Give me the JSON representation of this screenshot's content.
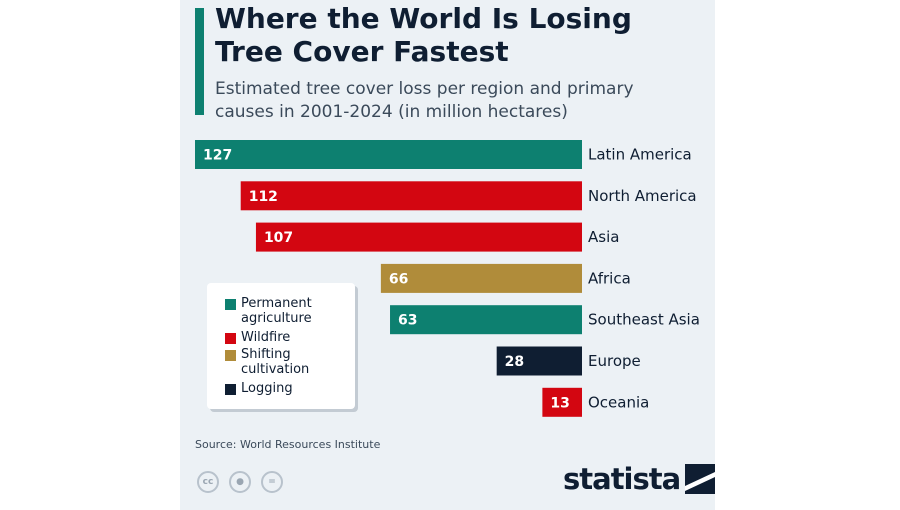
{
  "title": "Where the World Is Losing Tree Cover Fastest",
  "subtitle": "Estimated tree cover loss per region and primary causes in 2001-2024 (in million hectares)",
  "source": "Source: World Resources Institute",
  "brand": "statista",
  "colors": {
    "permanent_agriculture": "#0d8070",
    "wildfire": "#d30611",
    "shifting_cultivation": "#b08c3a",
    "logging": "#0f1e32",
    "accent": "#0d8070",
    "card_background": "#ecf1f5"
  },
  "legend": {
    "items": [
      {
        "label": "Permanent agriculture",
        "color": "#0d8070"
      },
      {
        "label": "Wildfire",
        "color": "#d30611"
      },
      {
        "label": "Shifting cultivation",
        "color": "#b08c3a"
      },
      {
        "label": "Logging",
        "color": "#0f1e32"
      }
    ]
  },
  "footer_icons": [
    "creative-commons-icon",
    "attribution-icon",
    "no-derivatives-icon"
  ],
  "chart_data": {
    "type": "bar",
    "orientation": "horizontal",
    "title": "Where the World Is Losing Tree Cover Fastest",
    "subtitle": "Estimated tree cover loss per region and primary causes in 2001-2024 (in million hectares)",
    "categories": [
      "Latin America",
      "North America",
      "Asia",
      "Africa",
      "Southeast Asia",
      "Europe",
      "Oceania"
    ],
    "values": [
      127,
      112,
      107,
      66,
      63,
      28,
      13
    ],
    "causes": [
      "Permanent agriculture",
      "Wildfire",
      "Wildfire",
      "Shifting cultivation",
      "Permanent agriculture",
      "Logging",
      "Wildfire"
    ],
    "xlim": [
      0,
      127
    ],
    "grid": false,
    "legend_position": "left"
  }
}
